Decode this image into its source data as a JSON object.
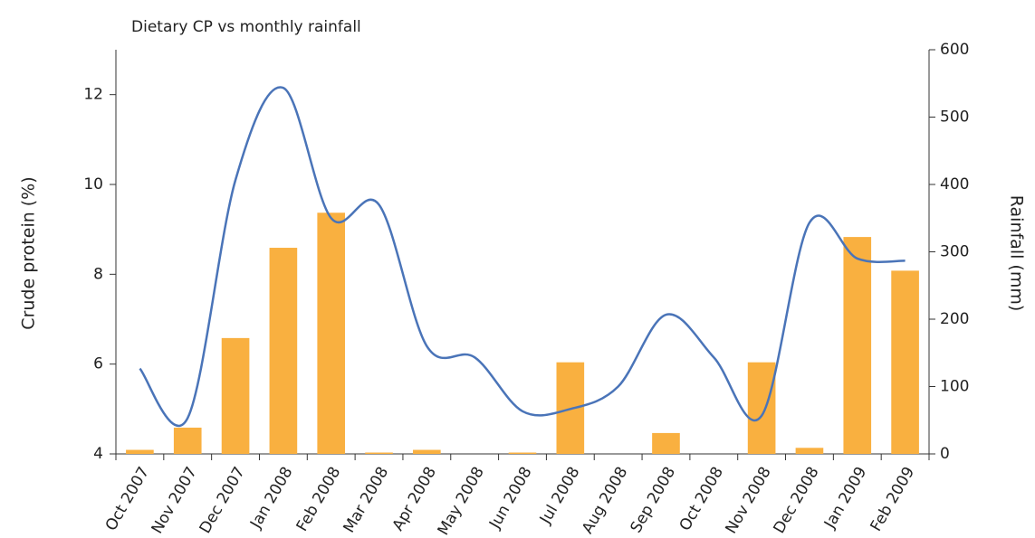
{
  "chart_data": {
    "type": "combo",
    "title": "Dietary CP vs monthly rainfall",
    "y_label": "Crude protein (%)",
    "y2_label": "Rainfall (mm)",
    "categories": [
      "Oct 2007",
      "Nov 2007",
      "Dec 2007",
      "Jan 2008",
      "Feb 2008",
      "Mar 2008",
      "Apr 2008",
      "May 2008",
      "Jun 2008",
      "Jul 2008",
      "Aug 2008",
      "Sep 2008",
      "Oct 2008",
      "Nov 2008",
      "Dec 2008",
      "Jan 2009",
      "Feb 2009"
    ],
    "series": [
      {
        "type": "bar",
        "axis": "y2",
        "color": "#f9b040",
        "values": [
          6,
          39,
          172,
          306,
          358,
          2,
          6,
          0,
          2,
          136,
          0,
          31,
          0,
          136,
          9,
          322,
          272
        ]
      },
      {
        "type": "line",
        "axis": "y",
        "color": "#4a74b8",
        "values": [
          5.9,
          4.8,
          10.1,
          12.15,
          9.25,
          9.55,
          6.4,
          6.15,
          4.95,
          5.0,
          5.5,
          7.1,
          6.15,
          4.85,
          9.15,
          8.35,
          8.3
        ]
      }
    ],
    "ylim": [
      4,
      13
    ],
    "yticks": [
      4,
      6,
      8,
      10,
      12
    ],
    "y2lim": [
      0,
      600
    ],
    "y2ticks": [
      0,
      100,
      200,
      300,
      400,
      500,
      600
    ]
  }
}
